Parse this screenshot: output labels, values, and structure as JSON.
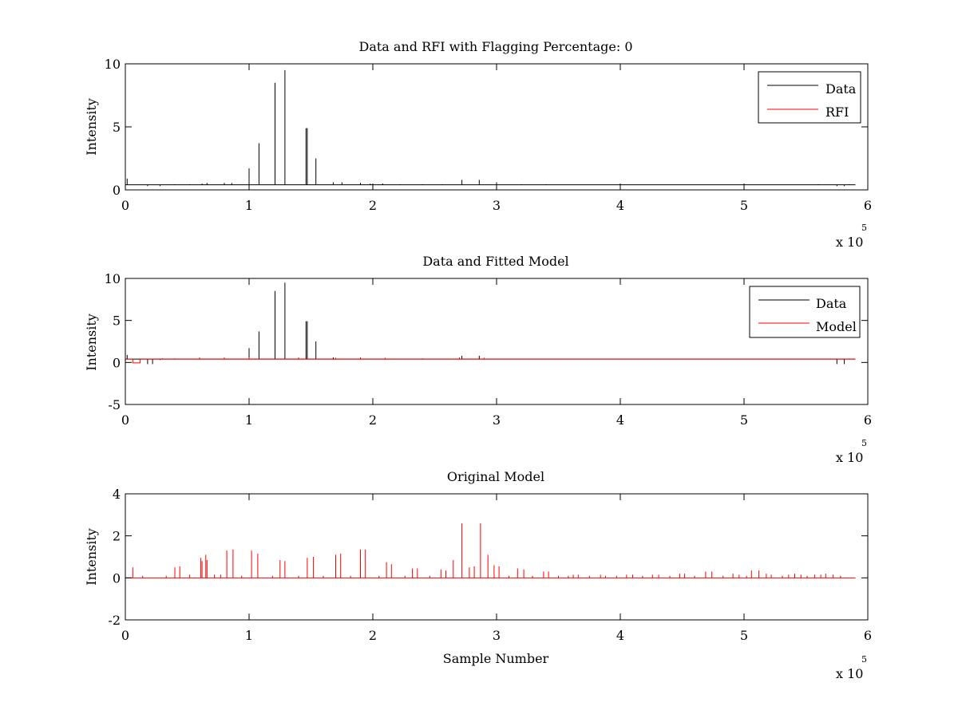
{
  "colors": {
    "data": "#000000",
    "rfi": "#ff0000",
    "model": "#ff0000",
    "axes": "#000000",
    "background": "#ffffff"
  },
  "chart_data": [
    {
      "type": "line",
      "title": "Data and RFI with Flagging Percentage: 0",
      "xlabel": "",
      "ylabel": "Intensity",
      "xlim": [
        0,
        600000
      ],
      "ylim": [
        0,
        10
      ],
      "xticks": [
        "0",
        "1",
        "2",
        "3",
        "4",
        "5",
        "6"
      ],
      "yticks": [
        "0",
        "5",
        "10"
      ],
      "x_multiplier": {
        "base": "x 10",
        "exponent": "5"
      },
      "legend": {
        "position": "top-right",
        "entries": [
          "Data",
          "RFI"
        ]
      },
      "series": [
        {
          "name": "Data",
          "color": "#000000",
          "baseline": 0.4,
          "spikes": [
            [
              0,
              1.0
            ],
            [
              1500,
              0.9
            ],
            [
              18000,
              0.3
            ],
            [
              28000,
              0.3
            ],
            [
              40000,
              0.45
            ],
            [
              52000,
              0.45
            ],
            [
              62000,
              0.5
            ],
            [
              66000,
              0.55
            ],
            [
              80000,
              0.55
            ],
            [
              86000,
              0.55
            ],
            [
              100000,
              1.7
            ],
            [
              108000,
              3.7
            ],
            [
              121000,
              8.5
            ],
            [
              129000,
              9.5
            ],
            [
              146000,
              4.9
            ],
            [
              147000,
              4.9
            ],
            [
              154000,
              2.5
            ],
            [
              168000,
              0.6
            ],
            [
              175000,
              0.6
            ],
            [
              190000,
              0.55
            ],
            [
              198000,
              0.5
            ],
            [
              208000,
              0.5
            ],
            [
              222000,
              0.45
            ],
            [
              240000,
              0.45
            ],
            [
              256000,
              0.45
            ],
            [
              272000,
              0.8
            ],
            [
              286000,
              0.8
            ],
            [
              300000,
              0.6
            ],
            [
              320000,
              0.45
            ],
            [
              340000,
              0.45
            ],
            [
              560000,
              0.45
            ],
            [
              575000,
              0.3
            ],
            [
              581000,
              0.3
            ],
            [
              585000,
              0.45
            ]
          ]
        },
        {
          "name": "RFI",
          "color": "#ff0000",
          "values": []
        }
      ]
    },
    {
      "type": "line",
      "title": "Data and Fitted Model",
      "xlabel": "",
      "ylabel": "Intensity",
      "xlim": [
        0,
        600000
      ],
      "ylim": [
        -5,
        10
      ],
      "xticks": [
        "0",
        "1",
        "2",
        "3",
        "4",
        "5",
        "6"
      ],
      "yticks": [
        "-5",
        "0",
        "5",
        "10"
      ],
      "x_multiplier": {
        "base": "x 10",
        "exponent": "5"
      },
      "legend": {
        "position": "top-right",
        "entries": [
          "Data",
          "Model"
        ]
      },
      "series": [
        {
          "name": "Data",
          "color": "#000000",
          "baseline": 0.4,
          "spikes": [
            [
              0,
              1.0
            ],
            [
              1500,
              0.9
            ],
            [
              18000,
              -0.2
            ],
            [
              22000,
              -0.2
            ],
            [
              28000,
              0.3
            ],
            [
              60000,
              0.5
            ],
            [
              80000,
              0.55
            ],
            [
              100000,
              1.7
            ],
            [
              108000,
              3.7
            ],
            [
              121000,
              8.5
            ],
            [
              129000,
              9.5
            ],
            [
              146000,
              4.9
            ],
            [
              147000,
              4.9
            ],
            [
              154000,
              2.5
            ],
            [
              168000,
              0.6
            ],
            [
              190000,
              0.55
            ],
            [
              240000,
              0.45
            ],
            [
              272000,
              0.8
            ],
            [
              286000,
              0.8
            ],
            [
              320000,
              0.45
            ],
            [
              575000,
              -0.2
            ],
            [
              581000,
              -0.2
            ],
            [
              585000,
              0.45
            ]
          ]
        },
        {
          "name": "Model",
          "color": "#ff0000",
          "baseline": 0.4,
          "segments": [
            [
              0,
              0.4
            ],
            [
              6000,
              0.4
            ],
            [
              6000,
              -0.05
            ],
            [
              12000,
              -0.05
            ],
            [
              12000,
              0.4
            ],
            [
              590000,
              0.4
            ]
          ],
          "spikes": [
            [
              30000,
              0.5
            ],
            [
              40000,
              0.5
            ],
            [
              60000,
              0.6
            ],
            [
              80000,
              0.6
            ],
            [
              100000,
              0.6
            ],
            [
              140000,
              0.6
            ],
            [
              170000,
              0.55
            ],
            [
              190000,
              0.6
            ],
            [
              210000,
              0.55
            ],
            [
              240000,
              0.5
            ],
            [
              270000,
              0.6
            ],
            [
              290000,
              0.55
            ]
          ]
        }
      ]
    },
    {
      "type": "line",
      "title": "Original Model",
      "xlabel": "Sample Number",
      "ylabel": "Intensity",
      "xlim": [
        0,
        600000
      ],
      "ylim": [
        -2,
        4
      ],
      "xticks": [
        "0",
        "1",
        "2",
        "3",
        "4",
        "5",
        "6"
      ],
      "yticks": [
        "-2",
        "0",
        "2",
        "4"
      ],
      "x_multiplier": {
        "base": "x 10",
        "exponent": "5"
      },
      "series": [
        {
          "name": "",
          "color": "#ff0000",
          "baseline": 0,
          "spikes": [
            [
              6000,
              0.5
            ],
            [
              14000,
              0.1
            ],
            [
              33000,
              0.1
            ],
            [
              40000,
              0.5
            ],
            [
              44000,
              0.55
            ],
            [
              52000,
              0.15
            ],
            [
              61000,
              0.95
            ],
            [
              62000,
              0.8
            ],
            [
              65000,
              1.1
            ],
            [
              66000,
              0.85
            ],
            [
              72000,
              0.15
            ],
            [
              77000,
              0.15
            ],
            [
              82000,
              1.3
            ],
            [
              87000,
              1.35
            ],
            [
              94000,
              0.1
            ],
            [
              102000,
              1.3
            ],
            [
              107000,
              1.15
            ],
            [
              119000,
              0.1
            ],
            [
              125000,
              0.85
            ],
            [
              129000,
              0.8
            ],
            [
              140000,
              0.1
            ],
            [
              147000,
              0.95
            ],
            [
              152000,
              1.0
            ],
            [
              160000,
              0.1
            ],
            [
              170000,
              1.1
            ],
            [
              174000,
              1.15
            ],
            [
              182000,
              0.1
            ],
            [
              190000,
              1.35
            ],
            [
              194000,
              1.35
            ],
            [
              205000,
              0.1
            ],
            [
              211000,
              0.75
            ],
            [
              215000,
              0.65
            ],
            [
              226000,
              0.1
            ],
            [
              232000,
              0.45
            ],
            [
              236000,
              0.45
            ],
            [
              246000,
              0.1
            ],
            [
              255000,
              0.4
            ],
            [
              259000,
              0.35
            ],
            [
              265000,
              0.85
            ],
            [
              272000,
              2.6
            ],
            [
              278000,
              0.5
            ],
            [
              282000,
              0.55
            ],
            [
              287000,
              2.6
            ],
            [
              293000,
              1.1
            ],
            [
              298000,
              0.6
            ],
            [
              302000,
              0.55
            ],
            [
              310000,
              0.1
            ],
            [
              317000,
              0.45
            ],
            [
              322000,
              0.4
            ],
            [
              329000,
              0.1
            ],
            [
              338000,
              0.3
            ],
            [
              342000,
              0.3
            ],
            [
              350000,
              0.1
            ],
            [
              358000,
              0.1
            ],
            [
              362000,
              0.15
            ],
            [
              366000,
              0.15
            ],
            [
              375000,
              0.1
            ],
            [
              384000,
              0.15
            ],
            [
              388000,
              0.1
            ],
            [
              397000,
              0.1
            ],
            [
              405000,
              0.15
            ],
            [
              410000,
              0.15
            ],
            [
              418000,
              0.1
            ],
            [
              426000,
              0.15
            ],
            [
              431000,
              0.15
            ],
            [
              440000,
              0.1
            ],
            [
              448000,
              0.2
            ],
            [
              452000,
              0.2
            ],
            [
              460000,
              0.1
            ],
            [
              469000,
              0.3
            ],
            [
              474000,
              0.3
            ],
            [
              483000,
              0.1
            ],
            [
              491000,
              0.2
            ],
            [
              496000,
              0.15
            ],
            [
              502000,
              0.1
            ],
            [
              506000,
              0.35
            ],
            [
              512000,
              0.35
            ],
            [
              518000,
              0.2
            ],
            [
              522000,
              0.15
            ],
            [
              531000,
              0.1
            ],
            [
              536000,
              0.15
            ],
            [
              541000,
              0.2
            ],
            [
              546000,
              0.15
            ],
            [
              551000,
              0.1
            ],
            [
              557000,
              0.15
            ],
            [
              562000,
              0.15
            ],
            [
              566000,
              0.2
            ],
            [
              572000,
              0.15
            ],
            [
              578000,
              0.1
            ]
          ]
        }
      ]
    }
  ]
}
